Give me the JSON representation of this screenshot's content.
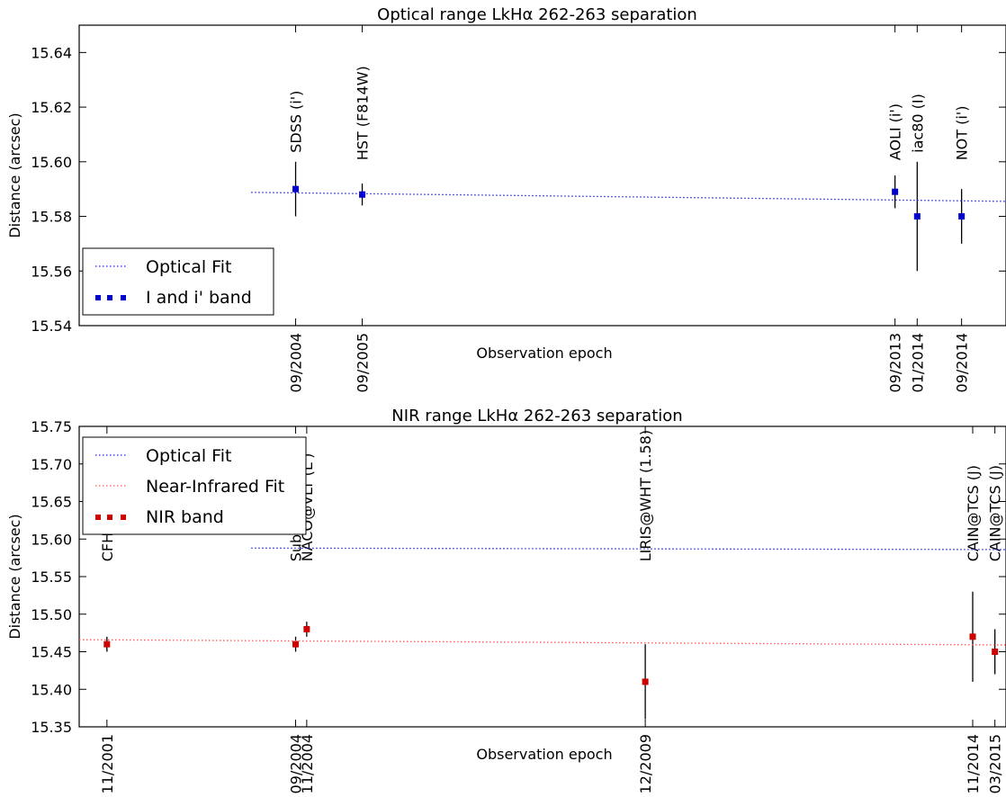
{
  "chart_data": [
    {
      "type": "scatter",
      "title": "Optical range LkHα 262-263 separation",
      "xlabel": "Observation epoch",
      "ylabel": "Distance (arcsec)",
      "ylim": [
        15.54,
        15.65
      ],
      "yticks": [
        "15.54",
        "15.56",
        "15.58",
        "15.60",
        "15.62",
        "15.64"
      ],
      "xlim": [
        "2001-06",
        "2015-05"
      ],
      "x_tick_labels": [
        {
          "x": "2004-09",
          "label": "09/2004"
        },
        {
          "x": "2005-09",
          "label": "09/2005"
        },
        {
          "x": "2013-09",
          "label": "09/2013"
        },
        {
          "x": "2014-01",
          "label": "01/2014"
        },
        {
          "x": "2014-09",
          "label": "09/2014"
        }
      ],
      "legend_position": "lower-left",
      "series": [
        {
          "name": "I and i' band",
          "kind": "errorbar",
          "color": "#0000cc",
          "marker": "square",
          "points": [
            {
              "x": "2004-09",
              "y": 15.59,
              "err": 0.01,
              "label": "SDSS (i')"
            },
            {
              "x": "2005-09",
              "y": 15.588,
              "err": 0.004,
              "label": "HST (F814W)"
            },
            {
              "x": "2013-09",
              "y": 15.589,
              "err": 0.006,
              "label": "AOLI (i')"
            },
            {
              "x": "2014-01",
              "y": 15.58,
              "err": 0.02,
              "label": "iac80 (I)"
            },
            {
              "x": "2014-09",
              "y": 15.58,
              "err": 0.01,
              "label": "NOT (i')"
            }
          ]
        },
        {
          "name": "Optical Fit",
          "kind": "line",
          "color": "#2222ff",
          "dash": "dotted",
          "points": [
            {
              "x": "2004-01",
              "y": 15.5888
            },
            {
              "x": "2015-05",
              "y": 15.5855
            }
          ]
        }
      ]
    },
    {
      "type": "scatter",
      "title": "NIR range LkHα 262-263 separation",
      "xlabel": "Observation epoch",
      "ylabel": "Distance (arcsec)",
      "ylim": [
        15.35,
        15.75
      ],
      "yticks": [
        "15.35",
        "15.40",
        "15.45",
        "15.50",
        "15.55",
        "15.60",
        "15.65",
        "15.70",
        "15.75"
      ],
      "xlim": [
        "2001-06",
        "2015-05"
      ],
      "x_tick_labels": [
        {
          "x": "2001-11",
          "label": "11/2001"
        },
        {
          "x": "2004-09",
          "label": "09/2004"
        },
        {
          "x": "2004-11",
          "label": "11/2004"
        },
        {
          "x": "2009-12",
          "label": "12/2009"
        },
        {
          "x": "2014-11",
          "label": "11/2014"
        },
        {
          "x": "2015-03",
          "label": "03/2015"
        }
      ],
      "legend_position": "upper-left",
      "series": [
        {
          "name": "NIR band",
          "kind": "errorbar",
          "color": "#cc0000",
          "marker": "square",
          "points": [
            {
              "x": "2001-11",
              "y": 15.46,
              "err": 0.01,
              "label": "CFHT (J)"
            },
            {
              "x": "2004-09",
              "y": 15.46,
              "err": 0.01,
              "label": "Subaru (H)"
            },
            {
              "x": "2004-11",
              "y": 15.48,
              "err": 0.01,
              "label": "NACO@VLT (L')"
            },
            {
              "x": "2009-12",
              "y": 15.41,
              "err": 0.05,
              "label": "LIRIS@WHT (1.58)"
            },
            {
              "x": "2014-11",
              "y": 15.47,
              "err": 0.06,
              "label": "CAIN@TCS (J)"
            },
            {
              "x": "2015-03",
              "y": 15.45,
              "err": 0.03,
              "label": "CAIN@TCS (J)"
            }
          ]
        },
        {
          "name": "Optical Fit",
          "kind": "line",
          "color": "#2222ff",
          "dash": "dotted",
          "points": [
            {
              "x": "2004-01",
              "y": 15.588
            },
            {
              "x": "2015-05",
              "y": 15.586
            }
          ]
        },
        {
          "name": "Near-Infrared Fit",
          "kind": "line",
          "color": "#ff5555",
          "dash": "dotted",
          "points": [
            {
              "x": "2001-06",
              "y": 15.466
            },
            {
              "x": "2015-05",
              "y": 15.459
            }
          ]
        }
      ]
    }
  ]
}
